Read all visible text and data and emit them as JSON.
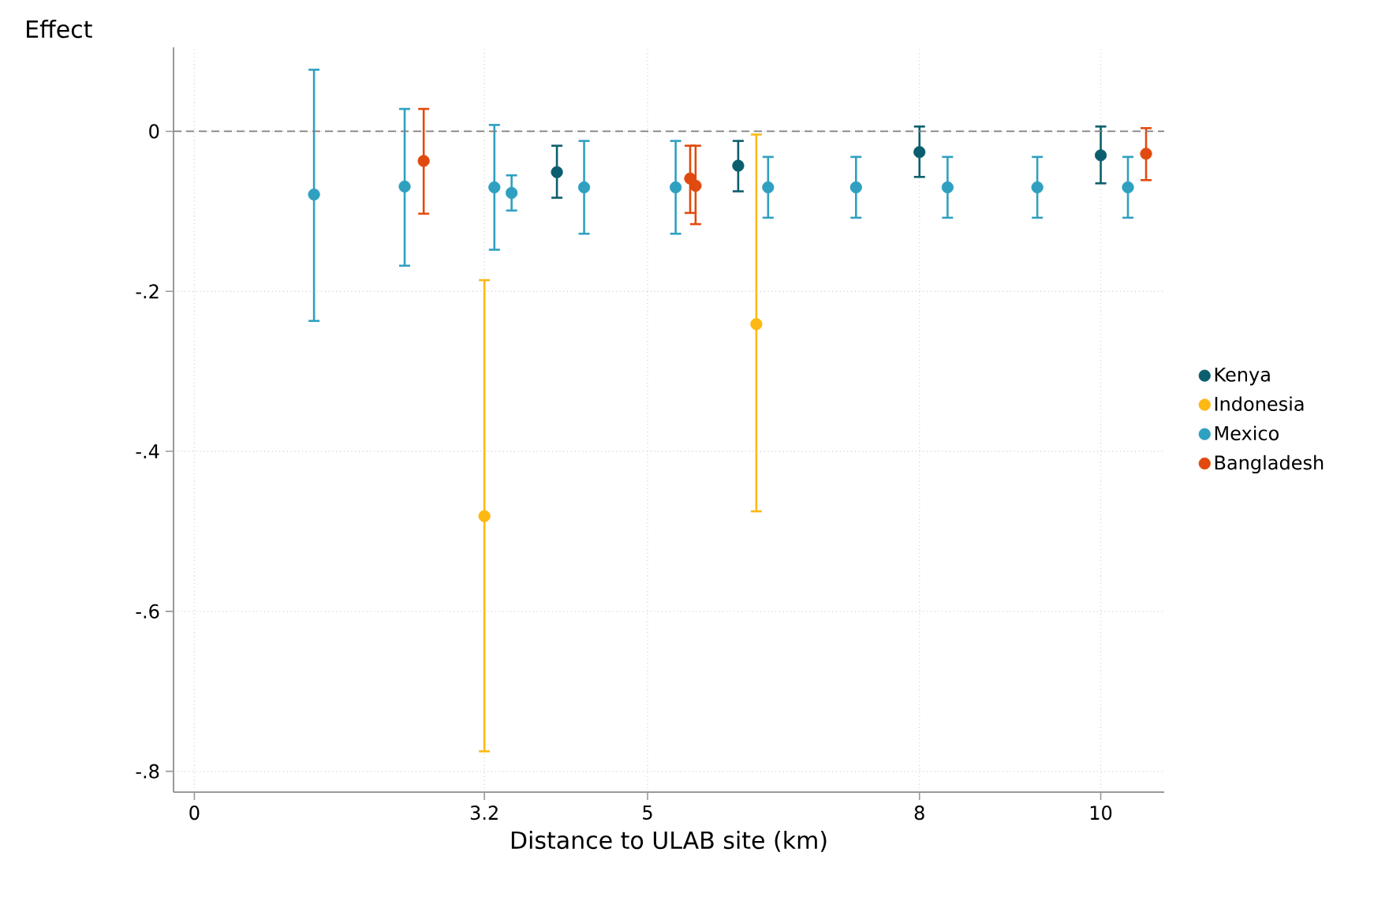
{
  "chart_data": {
    "type": "scatter",
    "xlabel": "Distance to ULAB site (km)",
    "ylabel": "Effect",
    "xlim": [
      -0.23,
      10.7
    ],
    "ylim": [
      -0.826,
      0.105
    ],
    "xticks": [
      0,
      3.2,
      5,
      8,
      10
    ],
    "yticks": [
      {
        "value": -0.8,
        "label": "-.8"
      },
      {
        "value": -0.6,
        "label": "-.6"
      },
      {
        "value": -0.4,
        "label": "-.4"
      },
      {
        "value": -0.2,
        "label": "-.2"
      },
      0
    ],
    "grid": true,
    "legend": "right",
    "marker": "circle",
    "ref_lines": [
      {
        "axis": "y",
        "value": 0,
        "color": "#808080",
        "line_style": "dashed"
      }
    ],
    "series": [
      {
        "name": "Kenya",
        "color": "#0b5e6e",
        "x": [
          4.0,
          6.0,
          8.0,
          10.0
        ],
        "values": [
          -0.051,
          -0.043,
          -0.026,
          -0.03
        ],
        "errors": [
          [
            -0.083,
            -0.018
          ],
          [
            -0.075,
            -0.012
          ],
          [
            -0.057,
            0.006
          ],
          [
            -0.065,
            0.006
          ]
        ]
      },
      {
        "name": "Indonesia",
        "color": "#fdb813",
        "x": [
          3.2,
          6.2
        ],
        "values": [
          -0.481,
          -0.241
        ],
        "errors": [
          [
            -0.775,
            -0.186
          ],
          [
            -0.475,
            -0.004
          ]
        ]
      },
      {
        "name": "Mexico",
        "color": "#2fa0c0",
        "x": [
          1.32,
          2.32,
          3.31,
          3.5,
          4.3,
          5.31,
          6.33,
          7.3,
          8.31,
          9.3,
          10.3
        ],
        "values": [
          -0.079,
          -0.069,
          -0.07,
          -0.077,
          -0.07,
          -0.07,
          -0.07,
          -0.07,
          -0.07,
          -0.07,
          -0.07
        ],
        "errors": [
          [
            -0.237,
            0.077
          ],
          [
            -0.168,
            0.028
          ],
          [
            -0.148,
            0.008
          ],
          [
            -0.099,
            -0.055
          ],
          [
            -0.128,
            -0.012
          ],
          [
            -0.128,
            -0.012
          ],
          [
            -0.108,
            -0.032
          ],
          [
            -0.108,
            -0.032
          ],
          [
            -0.108,
            -0.032
          ],
          [
            -0.108,
            -0.032
          ],
          [
            -0.108,
            -0.032
          ]
        ]
      },
      {
        "name": "Bangladesh",
        "color": "#e04a0f",
        "x": [
          2.53,
          5.47,
          5.53,
          10.5
        ],
        "values": [
          -0.037,
          -0.059,
          -0.068,
          -0.028
        ],
        "errors": [
          [
            -0.103,
            0.028
          ],
          [
            -0.102,
            -0.018
          ],
          [
            -0.116,
            -0.018
          ],
          [
            -0.061,
            0.004
          ]
        ]
      }
    ]
  }
}
